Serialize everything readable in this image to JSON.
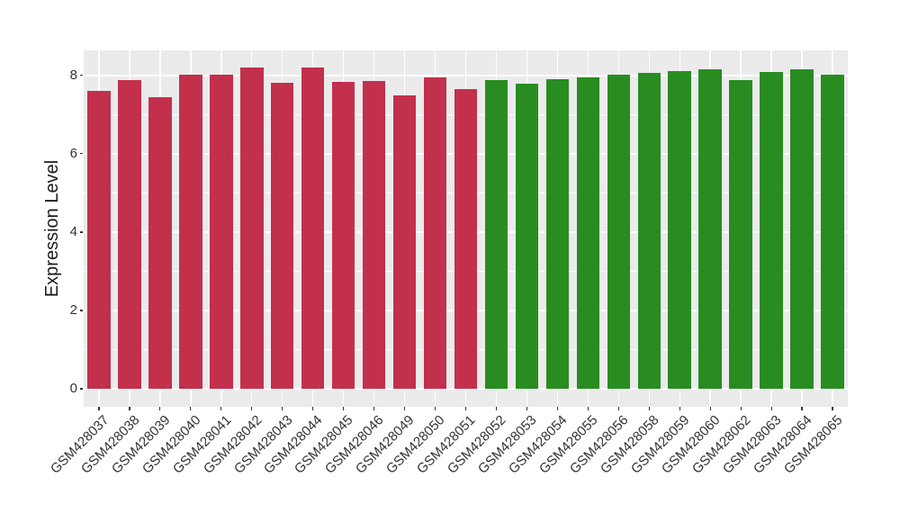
{
  "style": {
    "background": "#FFFFFF",
    "panel_background": "#EBEBEB",
    "grid_color": "#FFFFFF",
    "axis_text_color": "#333333",
    "axis_title_color": "#1A1A1A",
    "tick_color": "#333333",
    "group1_color": "#C2304C",
    "group2_color": "#288C21"
  },
  "chart_data": {
    "type": "bar",
    "title": "",
    "xlabel": "",
    "ylabel": "Expression Level",
    "ylim": [
      -0.46,
      8.64
    ],
    "yticks": [
      0,
      2,
      4,
      6,
      8
    ],
    "minor_yticks": [
      1,
      3,
      5,
      7
    ],
    "grid": true,
    "legend": "none",
    "categories": [
      "GSM428037",
      "GSM428038",
      "GSM428039",
      "GSM428040",
      "GSM428041",
      "GSM428042",
      "GSM428043",
      "GSM428044",
      "GSM428045",
      "GSM428046",
      "GSM428049",
      "GSM428050",
      "GSM428051",
      "GSM428052",
      "GSM428053",
      "GSM428054",
      "GSM428055",
      "GSM428056",
      "GSM428058",
      "GSM428059",
      "GSM428060",
      "GSM428062",
      "GSM428063",
      "GSM428064",
      "GSM428065"
    ],
    "values": [
      7.61,
      7.89,
      7.45,
      8.01,
      8.02,
      8.21,
      7.82,
      8.21,
      7.84,
      7.86,
      7.48,
      7.94,
      7.65,
      7.89,
      7.78,
      7.9,
      7.95,
      8.03,
      8.06,
      8.11,
      8.15,
      7.89,
      8.08,
      8.16,
      8.01
    ],
    "bar_colors": [
      "#C2304C",
      "#C2304C",
      "#C2304C",
      "#C2304C",
      "#C2304C",
      "#C2304C",
      "#C2304C",
      "#C2304C",
      "#C2304C",
      "#C2304C",
      "#C2304C",
      "#C2304C",
      "#C2304C",
      "#288C21",
      "#288C21",
      "#288C21",
      "#288C21",
      "#288C21",
      "#288C21",
      "#288C21",
      "#288C21",
      "#288C21",
      "#288C21",
      "#288C21",
      "#288C21"
    ]
  }
}
